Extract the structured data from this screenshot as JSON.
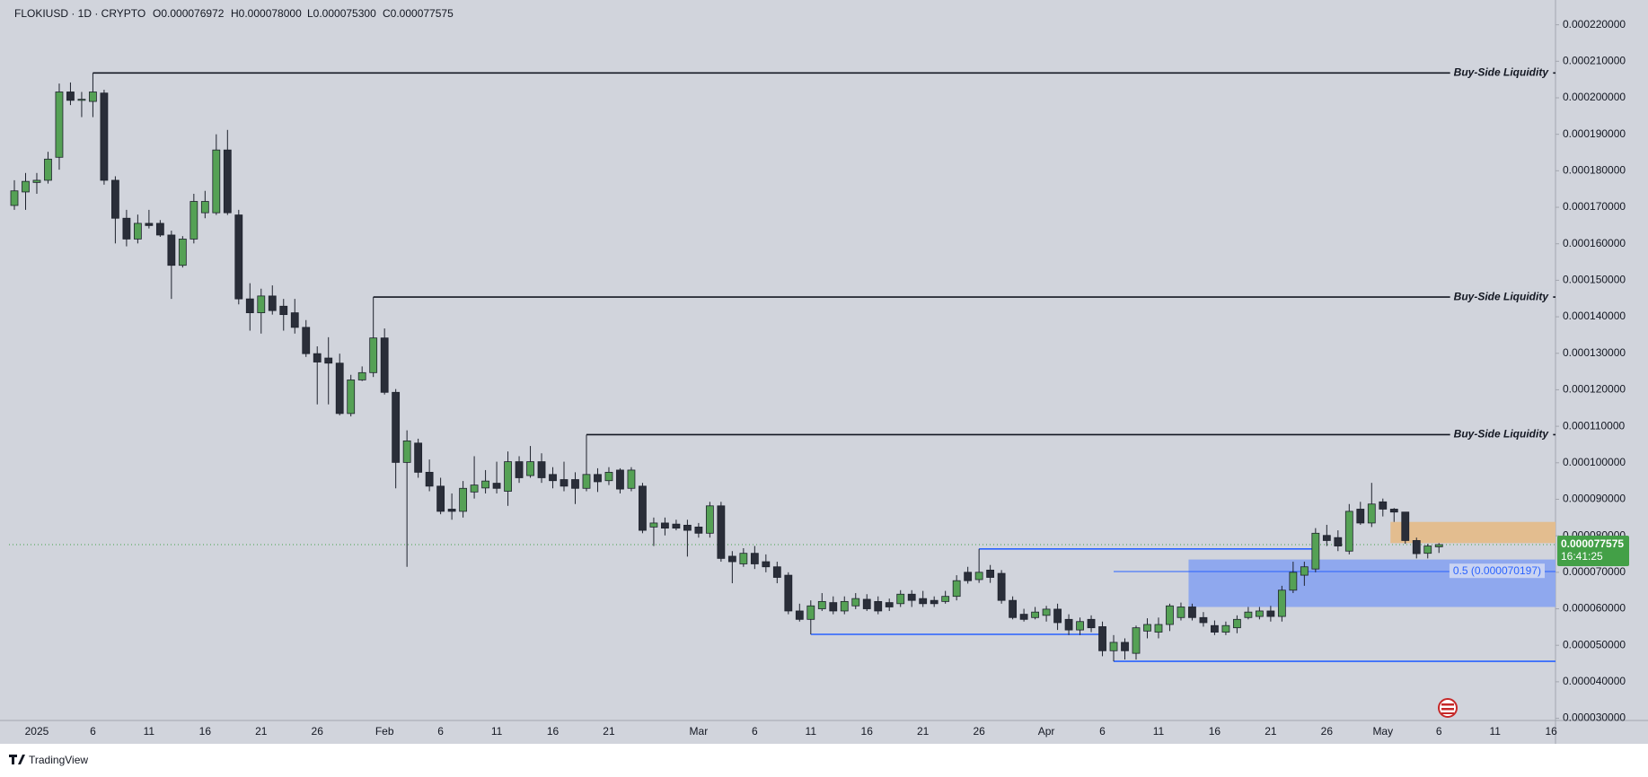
{
  "chart_data": {
    "type": "candlestick",
    "symbol": "FLOKIUSD · 1D · CRYPTO",
    "ohlc_labels": [
      "O0.000076972",
      "H0.000078000",
      "L0.000075300",
      "C0.000077575"
    ],
    "brand": "TradingView",
    "countdown": "16:41:25",
    "up_color": "#55a155",
    "down_color": "#2a2e39",
    "wick_color": "#1e222d",
    "grid": false,
    "categories": [
      null,
      null,
      "2025",
      null,
      null,
      null,
      null,
      "6",
      null,
      null,
      null,
      null,
      "11",
      null,
      null,
      null,
      null,
      "16",
      null,
      null,
      null,
      null,
      "21",
      null,
      null,
      null,
      null,
      "26",
      null,
      null,
      null,
      null,
      null,
      "Feb",
      null,
      null,
      null,
      null,
      "6",
      null,
      null,
      null,
      null,
      "11",
      null,
      null,
      null,
      null,
      "16",
      null,
      null,
      null,
      null,
      "21",
      null,
      null,
      null,
      null,
      null,
      null,
      null,
      "Mar",
      null,
      null,
      null,
      null,
      "6",
      null,
      null,
      null,
      null,
      "11",
      null,
      null,
      null,
      null,
      "16",
      null,
      null,
      null,
      null,
      "21",
      null,
      null,
      null,
      null,
      "26",
      null,
      null,
      null,
      null,
      null,
      "Apr",
      null,
      null,
      null,
      null,
      "6",
      null,
      null,
      null,
      null,
      "11",
      null,
      null,
      null,
      null,
      "16",
      null,
      null,
      null,
      null,
      "21",
      null,
      null,
      null,
      null,
      "26",
      null,
      null,
      null,
      null,
      "May",
      null,
      null,
      null,
      null,
      "6",
      null,
      null,
      null,
      null,
      "11",
      null,
      null,
      null,
      null,
      "16"
    ],
    "open": [
      0.0001705,
      0.0001742,
      0.0001768,
      0.0001774,
      0.0001837,
      0.0002016,
      0.0001993,
      0.000199,
      0.0002013,
      0.0001774,
      0.000167,
      0.0001613,
      0.0001656,
      0.0001656,
      0.0001624,
      0.0001541,
      0.0001613,
      0.0001685,
      0.0001685,
      0.0001857,
      0.0001679,
      0.0001449,
      0.0001411,
      0.0001457,
      0.0001429,
      0.0001411,
      0.0001371,
      0.0001299,
      0.0001287,
      0.0001273,
      0.0001135,
      0.0001227,
      0.0001247,
      0.0001342,
      0.0001193,
      0.0001001,
      0.0001054,
      9.74e-05,
      9.36e-05,
      8.73e-05,
      8.67e-05,
      9.2e-05,
      9.31e-05,
      9.44e-05,
      9.22e-05,
      0.0001003,
      9.65e-05,
      0.0001003,
      9.68e-05,
      9.54e-05,
      9.54e-05,
      9.3e-05,
      9.68e-05,
      9.51e-05,
      9.8e-05,
      9.3e-05,
      9.36e-05,
      8.24e-05,
      8.35e-05,
      8.32e-05,
      8.29e-05,
      8.24e-05,
      8.07e-05,
      8.82e-05,
      7.44e-05,
      7.23e-05,
      7.52e-05,
      7.29e-05,
      7.15e-05,
      6.92e-05,
      5.94e-05,
      5.71e-05,
      6e-05,
      6.17e-05,
      5.94e-05,
      6.08e-05,
      6.26e-05,
      6.2e-05,
      6.17e-05,
      6.14e-05,
      6.4e-05,
      6.28e-05,
      6.23e-05,
      6.2e-05,
      6.34e-05,
      7e-05,
      6.8e-05,
      7.06e-05,
      6.97e-05,
      6.23e-05,
      5.85e-05,
      5.76e-05,
      5.82e-05,
      5.99e-05,
      5.71e-05,
      5.42e-05,
      5.71e-05,
      5.51e-05,
      4.85e-05,
      5.08e-05,
      4.78e-05,
      5.39e-05,
      5.36e-05,
      5.57e-05,
      5.76e-05,
      6.05e-05,
      5.76e-05,
      5.54e-05,
      5.36e-05,
      5.48e-05,
      5.76e-05,
      5.79e-05,
      5.94e-05,
      5.79e-05,
      6.51e-05,
      6.92e-05,
      7.09e-05,
      8.01e-05,
      7.95e-05,
      7.58e-05,
      8.73e-05,
      8.35e-05,
      8.93e-05,
      8.73e-05,
      8.65e-05,
      7.87e-05,
      7.52e-05,
      7.6972e-05,
      null,
      null,
      null,
      null,
      null,
      null,
      null,
      null,
      null,
      null
    ],
    "high": [
      0.0001774,
      0.0001794,
      0.0001794,
      0.0001852,
      0.0002039,
      0.0002042,
      0.0002016,
      0.0002068,
      0.0002022,
      0.0001785,
      0.0001693,
      0.000168,
      0.0001693,
      0.0001665,
      0.0001636,
      0.0001621,
      0.0001737,
      0.0001745,
      0.00019,
      0.0001912,
      0.0001693,
      0.0001492,
      0.0001477,
      0.0001486,
      0.0001449,
      0.0001449,
      0.0001391,
      0.0001319,
      0.0001344,
      0.0001299,
      0.0001241,
      0.0001264,
      0.0001454,
      0.0001368,
      0.0001202,
      0.0001089,
      0.0001066,
      0.0001009,
      9.59e-05,
      9.16e-05,
      9.5e-05,
      0.0001018,
      9.8e-05,
      0.0001003,
      0.0001031,
      0.0001018,
      0.0001046,
      0.0001026,
      9.88e-05,
      0.0001003,
      9.74e-05,
      0.0001077,
      9.85e-05,
      9.88e-05,
      9.85e-05,
      9.88e-05,
      9.45e-05,
      8.5e-05,
      8.5e-05,
      8.44e-05,
      8.44e-05,
      8.35e-05,
      8.93e-05,
      8.93e-05,
      7.58e-05,
      7.66e-05,
      7.72e-05,
      7.49e-05,
      7.29e-05,
      7e-05,
      6.14e-05,
      6.23e-05,
      6.43e-05,
      6.34e-05,
      6.34e-05,
      6.43e-05,
      6.4e-05,
      6.34e-05,
      6.28e-05,
      6.51e-05,
      6.51e-05,
      6.49e-05,
      6.34e-05,
      6.49e-05,
      6.92e-05,
      7.15e-05,
      7.64e-05,
      7.2e-05,
      7.06e-05,
      6.34e-05,
      6e-05,
      6.05e-05,
      6.08e-05,
      6.14e-05,
      5.85e-05,
      5.76e-05,
      5.82e-05,
      5.65e-05,
      5.28e-05,
      5.19e-05,
      5.54e-05,
      5.74e-05,
      5.76e-05,
      6.14e-05,
      6.17e-05,
      6.14e-05,
      5.91e-05,
      5.68e-05,
      5.65e-05,
      5.82e-05,
      6.05e-05,
      6.05e-05,
      6.08e-05,
      6.63e-05,
      7.29e-05,
      7.29e-05,
      8.21e-05,
      8.3e-05,
      8.15e-05,
      8.87e-05,
      8.93e-05,
      9.45e-05,
      9.02e-05,
      8.76e-05,
      8.65e-05,
      7.95e-05,
      7.78e-05,
      7.8e-05,
      null,
      null,
      null,
      null,
      null,
      null,
      null,
      null,
      null,
      null
    ],
    "low": [
      0.0001693,
      0.0001693,
      0.0001737,
      0.0001765,
      0.0001803,
      0.000198,
      0.0001947,
      0.0001947,
      0.0001762,
      0.0001601,
      0.0001593,
      0.0001601,
      0.0001642,
      0.0001619,
      0.0001449,
      0.0001535,
      0.0001601,
      0.000167,
      0.0001679,
      0.0001679,
      0.0001434,
      0.0001362,
      0.0001354,
      0.0001406,
      0.0001362,
      0.0001354,
      0.000129,
      0.000116,
      0.000116,
      0.000113,
      0.0001127,
      0.0001224,
      0.0001235,
      0.0001187,
      9.3e-05,
      7.15e-05,
      9.59e-05,
      9.22e-05,
      8.59e-05,
      8.44e-05,
      8.5e-05,
      9.02e-05,
      9.16e-05,
      9.16e-05,
      8.82e-05,
      9.45e-05,
      9.59e-05,
      9.45e-05,
      9.3e-05,
      9.22e-05,
      8.87e-05,
      9.22e-05,
      9.2e-05,
      9.39e-05,
      9.16e-05,
      9.22e-05,
      8.07e-05,
      7.72e-05,
      8.01e-05,
      8.15e-05,
      7.43e-05,
      7.95e-05,
      7.95e-05,
      7.29e-05,
      6.7e-05,
      7.15e-05,
      7.09e-05,
      7e-05,
      6.7e-05,
      5.85e-05,
      5.65e-05,
      5.3e-05,
      5.94e-05,
      5.85e-05,
      5.85e-05,
      5.99e-05,
      5.94e-05,
      5.85e-05,
      5.94e-05,
      6.05e-05,
      6.05e-05,
      6.05e-05,
      6.05e-05,
      6.14e-05,
      6.23e-05,
      6.69e-05,
      6.71e-05,
      6.71e-05,
      6.14e-05,
      5.71e-05,
      5.65e-05,
      5.71e-05,
      5.65e-05,
      5.42e-05,
      5.28e-05,
      5.28e-05,
      5.36e-05,
      4.7e-05,
      4.56e-05,
      4.61e-05,
      4.61e-05,
      5.19e-05,
      5.19e-05,
      5.39e-05,
      5.68e-05,
      5.68e-05,
      5.51e-05,
      5.28e-05,
      5.28e-05,
      5.33e-05,
      5.71e-05,
      5.71e-05,
      5.65e-05,
      5.65e-05,
      6.43e-05,
      6.63e-05,
      7e-05,
      7.72e-05,
      7.58e-05,
      7.49e-05,
      8.3e-05,
      8.24e-05,
      8.53e-05,
      8.38e-05,
      7.78e-05,
      7.38e-05,
      7.38e-05,
      7.53e-05,
      null,
      null,
      null,
      null,
      null,
      null,
      null,
      null,
      null,
      null
    ],
    "close": [
      0.0001745,
      0.0001771,
      0.0001774,
      0.0001832,
      0.0002016,
      0.0001993,
      0.0001996,
      0.0002016,
      0.0001774,
      0.000167,
      0.0001613,
      0.0001656,
      0.000165,
      0.0001624,
      0.0001541,
      0.0001613,
      0.0001716,
      0.0001716,
      0.0001857,
      0.0001685,
      0.0001449,
      0.0001411,
      0.0001457,
      0.0001417,
      0.0001406,
      0.0001371,
      0.0001299,
      0.0001276,
      0.0001273,
      0.0001135,
      0.0001227,
      0.0001247,
      0.0001342,
      0.0001193,
      0.0001001,
      0.000106,
      9.74e-05,
      9.36e-05,
      8.67e-05,
      8.67e-05,
      9.3e-05,
      9.39e-05,
      9.5e-05,
      9.3e-05,
      0.0001003,
      9.59e-05,
      0.0001003,
      9.59e-05,
      9.51e-05,
      9.36e-05,
      9.3e-05,
      9.68e-05,
      9.48e-05,
      9.74e-05,
      9.28e-05,
      9.8e-05,
      8.15e-05,
      8.35e-05,
      8.21e-05,
      8.21e-05,
      8.15e-05,
      8.07e-05,
      8.82e-05,
      7.38e-05,
      7.29e-05,
      7.52e-05,
      7.23e-05,
      7.15e-05,
      6.86e-05,
      5.94e-05,
      5.71e-05,
      6.08e-05,
      6.2e-05,
      5.94e-05,
      6.2e-05,
      6.28e-05,
      6e-05,
      5.94e-05,
      6.05e-05,
      6.4e-05,
      6.23e-05,
      6.14e-05,
      6.14e-05,
      6.34e-05,
      6.77e-05,
      6.77e-05,
      7e-05,
      6.86e-05,
      6.23e-05,
      5.76e-05,
      5.71e-05,
      5.91e-05,
      5.99e-05,
      5.62e-05,
      5.42e-05,
      5.65e-05,
      5.48e-05,
      4.85e-05,
      5.08e-05,
      4.85e-05,
      5.48e-05,
      5.57e-05,
      5.57e-05,
      6.08e-05,
      6.05e-05,
      5.76e-05,
      5.62e-05,
      5.36e-05,
      5.54e-05,
      5.71e-05,
      5.91e-05,
      5.94e-05,
      5.79e-05,
      6.51e-05,
      7e-05,
      7.15e-05,
      8.07e-05,
      7.87e-05,
      7.72e-05,
      8.67e-05,
      8.35e-05,
      8.87e-05,
      8.73e-05,
      8.65e-05,
      7.87e-05,
      7.51e-05,
      7.72e-05,
      7.7575e-05,
      null,
      null,
      null,
      null,
      null,
      null,
      null,
      null,
      null,
      null
    ],
    "ylim": [
      2.94e-05,
      0.0002263
    ],
    "yticks": [
      {
        "value": 0.00022,
        "label": "0.000220000"
      },
      {
        "value": 0.00021,
        "label": "0.000210000"
      },
      {
        "value": 0.0002,
        "label": "0.000200000"
      },
      {
        "value": 0.00019,
        "label": "0.000190000"
      },
      {
        "value": 0.00018,
        "label": "0.000180000"
      },
      {
        "value": 0.00017,
        "label": "0.000170000"
      },
      {
        "value": 0.00016,
        "label": "0.000160000"
      },
      {
        "value": 0.00015,
        "label": "0.000150000"
      },
      {
        "value": 0.00014,
        "label": "0.000140000"
      },
      {
        "value": 0.00013,
        "label": "0.000130000"
      },
      {
        "value": 0.00012,
        "label": "0.000120000"
      },
      {
        "value": 0.00011,
        "label": "0.000110000"
      },
      {
        "value": 0.0001,
        "label": "0.000100000"
      },
      {
        "value": 9e-05,
        "label": "0.000090000"
      },
      {
        "value": 8e-05,
        "label": "0.000080000"
      },
      {
        "value": 7e-05,
        "label": "0.000070000"
      },
      {
        "value": 6e-05,
        "label": "0.000060000"
      },
      {
        "value": 5e-05,
        "label": "0.000050000"
      },
      {
        "value": 4e-05,
        "label": "0.000040000"
      },
      {
        "value": 3e-05,
        "label": "0.000030000"
      }
    ],
    "liquidity": [
      {
        "label": "Buy-Side Liquidity",
        "value": 0.0002068,
        "from": 7
      },
      {
        "label": "Buy-Side Liquidity",
        "value": 0.0001454,
        "from": 32
      },
      {
        "label": "Buy-Side Liquidity",
        "value": 0.0001077,
        "from": 51
      }
    ],
    "lines": [
      {
        "value": 7.64e-05,
        "from": 86,
        "to": 116,
        "color": "#2962ff"
      },
      {
        "value": 5.3e-05,
        "from": 71,
        "to": 97,
        "color": "#2962ff"
      },
      {
        "value": 4.56e-05,
        "from": 98,
        "color": "#2962ff"
      }
    ],
    "fib": {
      "label": "0.5 (0.000070197)",
      "value": 7.0197e-05,
      "from": 98,
      "color": "#2962ff"
    },
    "zones": [
      {
        "from": 105,
        "high": 7.35e-05,
        "low": 6.05e-05,
        "color": "#8fa8ee"
      },
      {
        "from": 123,
        "high": 8.38e-05,
        "low": 7.8e-05,
        "color": "#e3bd8f"
      }
    ],
    "last_color": "#43a047"
  }
}
